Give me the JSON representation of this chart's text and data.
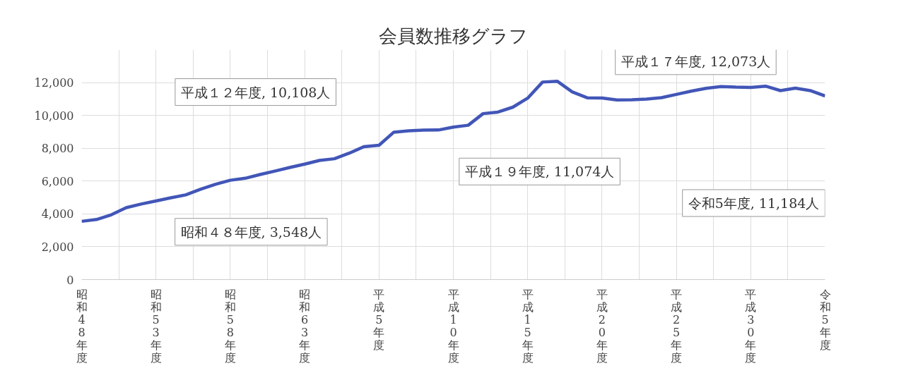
{
  "chart_data": {
    "type": "line",
    "title": "会員数推移グラフ",
    "categories": [
      "昭和48年度",
      null,
      null,
      null,
      null,
      "昭和53年度",
      null,
      null,
      null,
      null,
      "昭和58年度",
      null,
      null,
      null,
      null,
      "昭和63年度",
      null,
      null,
      null,
      null,
      "平成5年度",
      null,
      null,
      null,
      null,
      "平成10年度",
      null,
      null,
      null,
      null,
      "平成15年度",
      null,
      null,
      null,
      null,
      "平成20年度",
      null,
      null,
      null,
      null,
      "平成25年度",
      null,
      null,
      null,
      null,
      "平成30年度",
      null,
      null,
      null,
      null,
      "令和5年度"
    ],
    "series": [
      {
        "color": "#4256b8",
        "values": [
          3548,
          3660,
          3950,
          4380,
          4600,
          4790,
          4980,
          5160,
          5500,
          5800,
          6050,
          6170,
          6400,
          6610,
          6830,
          7030,
          7260,
          7360,
          7700,
          8100,
          8180,
          8980,
          9060,
          9100,
          9110,
          9290,
          9400,
          10108,
          10200,
          10500,
          11050,
          12030,
          12073,
          11430,
          11074,
          11060,
          10940,
          10950,
          10990,
          11080,
          11280,
          11480,
          11650,
          11760,
          11720,
          11700,
          11780,
          11510,
          11660,
          11510,
          11184
        ]
      }
    ],
    "ylim": [
      0,
      14000
    ],
    "yticks": [
      0,
      {
        "value": 2000,
        "label": "2,000"
      },
      {
        "value": 4000,
        "label": "4,000"
      },
      {
        "value": 6000,
        "label": "6,000"
      },
      {
        "value": 8000,
        "label": "8,000"
      },
      {
        "value": 10000,
        "label": "10,000"
      },
      {
        "value": 12000,
        "label": "12,000"
      }
    ],
    "grid": true,
    "marker": "none",
    "line_style": "solid",
    "annotations": [
      "昭和４８年度, 3,548人",
      "平成１２年度, 10,108人",
      "平成１７年度, 12,073人",
      "平成１９年度, 11,074人",
      "令和5年度, 11,184人"
    ]
  }
}
